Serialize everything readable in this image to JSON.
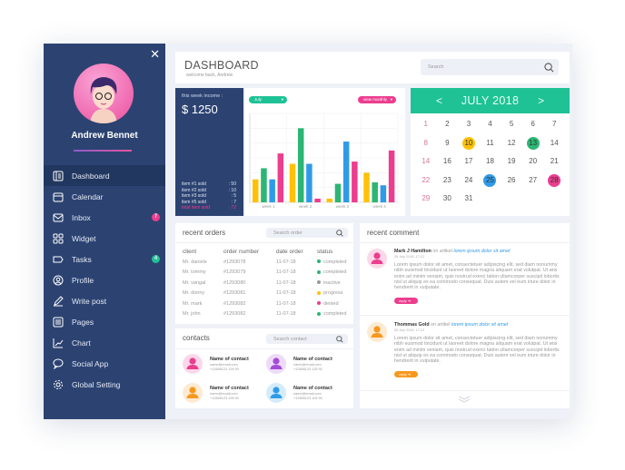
{
  "colors": {
    "sidebar": "#2c4372",
    "green": "#1fc295",
    "yellow": "#ffc107",
    "pink": "#ec3d8f",
    "blue": "#2f9be8",
    "purple": "#a64ad8",
    "orange": "#f7981e"
  },
  "sidebar": {
    "close_icon": "close-icon",
    "user_name": "Andrew Bennet",
    "items": [
      {
        "label": "Dashboard",
        "icon": "dashboard-icon"
      },
      {
        "label": "Calendar",
        "icon": "calendar-icon"
      },
      {
        "label": "Inbox",
        "icon": "mail-icon",
        "badge": "7"
      },
      {
        "label": "Widget",
        "icon": "grid-icon"
      },
      {
        "label": "Tasks",
        "icon": "tag-icon",
        "badge": "4"
      },
      {
        "label": "Profile",
        "icon": "user-icon"
      },
      {
        "label": "Write post",
        "icon": "pencil-icon"
      },
      {
        "label": "Pages",
        "icon": "pages-icon"
      },
      {
        "label": "Chart",
        "icon": "chart-icon"
      },
      {
        "label": "Social App",
        "icon": "chat-icon"
      },
      {
        "label": "Global Setting",
        "icon": "gear-icon"
      }
    ]
  },
  "header": {
    "title": "DASHBOARD",
    "subtitle": "welcome back, Andrew",
    "search_placeholder": "Search"
  },
  "income": {
    "label": "this week income :",
    "value": "$ 1250",
    "items": [
      [
        "item #1 sold",
        ": 50"
      ],
      [
        "item #2 sold",
        ": 10"
      ],
      [
        "item #3 sold",
        ": 5"
      ],
      [
        "item #5 sold",
        ": 7"
      ]
    ],
    "total": [
      "total item sold",
      ": 72"
    ]
  },
  "chart_data": {
    "type": "bar",
    "month_select": "July",
    "period_select": "view monthly",
    "categories": [
      "week 1",
      "week 2",
      "week 3",
      "week 4"
    ],
    "ylim": [
      0,
      6
    ],
    "grid": true,
    "series": [
      {
        "color": "#ffc107",
        "values": [
          1.55,
          2.6,
          0.25,
          2.0
        ]
      },
      {
        "color": "#2bb673",
        "values": [
          2.3,
          5.0,
          1.25,
          1.35
        ]
      },
      {
        "color": "#2f9be8",
        "values": [
          1.55,
          2.6,
          4.1,
          1.15
        ]
      },
      {
        "color": "#ec3d8f",
        "values": [
          3.3,
          0.25,
          2.75,
          3.5
        ]
      }
    ]
  },
  "calendar": {
    "month": "JULY 2018",
    "prev": "<",
    "next": ">",
    "days": [
      [
        "1",
        "2",
        "3",
        "4",
        "5",
        "6",
        "7"
      ],
      [
        "8",
        "9",
        "10",
        "11",
        "12",
        "13",
        "14"
      ],
      [
        "14",
        "16",
        "17",
        "18",
        "19",
        "20",
        "21"
      ],
      [
        "22",
        "23",
        "24",
        "25",
        "26",
        "27",
        "28"
      ],
      [
        "29",
        "30",
        "31",
        "",
        "",
        "",
        ""
      ]
    ],
    "highlights": {
      "10": "#ffc107",
      "13": "#2bb673",
      "25": "#2f9be8",
      "28": "#ec3d8f"
    }
  },
  "orders": {
    "title": "recent orders",
    "search_placeholder": "Search order",
    "columns": [
      "client",
      "order number",
      "date order",
      "status"
    ],
    "rows": [
      [
        "Mr. daniels",
        "#1293078",
        "11-07-18",
        "completed"
      ],
      [
        "Mr. tommy",
        "#1293079",
        "11-07-18",
        "completed"
      ],
      [
        "Mr. vangal",
        "#1293080",
        "11-07-18",
        "inactive"
      ],
      [
        "Mr. donny",
        "#1293081",
        "11-07-18",
        "progress"
      ],
      [
        "Mr. mark",
        "#1293082",
        "11-07-18",
        "denied"
      ],
      [
        "Mr. john",
        "#1293082",
        "11-07-18",
        "completed"
      ]
    ],
    "status_colors": {
      "completed": "#2bb673",
      "inactive": "#999999",
      "progress": "#ffc107",
      "denied": "#ec3d8f"
    }
  },
  "contacts": {
    "title": "contacts",
    "search_placeholder": "Search contact",
    "items": [
      {
        "name": "Name of contact",
        "email": "name@email.com",
        "phone": "+12658123 128 90",
        "color": "#ec3d8f"
      },
      {
        "name": "Name of contact",
        "email": "name@email.com",
        "phone": "+12658123 128 90",
        "color": "#a64ad8"
      },
      {
        "name": "Name of contact",
        "email": "name@email.com",
        "phone": "+12658123 128 90",
        "color": "#f7981e"
      },
      {
        "name": "Name of contact",
        "email": "name@email.com",
        "phone": "+12658123 128 90",
        "color": "#2f9be8"
      }
    ]
  },
  "comments": {
    "title": "recent comment",
    "items": [
      {
        "author": "Mark J Hamilton",
        "on": "on artikel",
        "article": "lorem ipsum dolor sit amet",
        "date": "05 July 2018, 17:12",
        "text": "Lorem ipsum dolor sit amet, consectetuer adipiscing elit, sed diam nonummy nibh euismod tincidunt ut laoreet dolore magna aliquam erat volutpat. Ut wisi enim ad minim veniam, quis nostrud exerci tation ullamcorper suscipit lobortis nisl ut aliquip ex ea commodo consequat. Duis autem vel eum iriure dolor in hendrerit in vulputate.",
        "reply": "reply",
        "color": "#ec3d8f"
      },
      {
        "author": "Thommas Gold",
        "on": "on artikel",
        "article": "lorem ipsum dolor sit amet",
        "date": "05 July 2018, 17:12",
        "text": "Lorem ipsum dolor sit amet, consectetuer adipiscing elit, sed diam nonummy nibh euismod tincidunt ut laoreet dolore magna aliquam erat volutpat. Ut wisi enim ad minim veniam, quis nostrud exerci tation ullamcorper suscipit lobortis nisl ut aliquip ex ea commodo consequat. Duis autem vel eum iriure dolor in hendrerit in vulputate.",
        "reply": "reply",
        "color": "#f7981e"
      }
    ]
  }
}
